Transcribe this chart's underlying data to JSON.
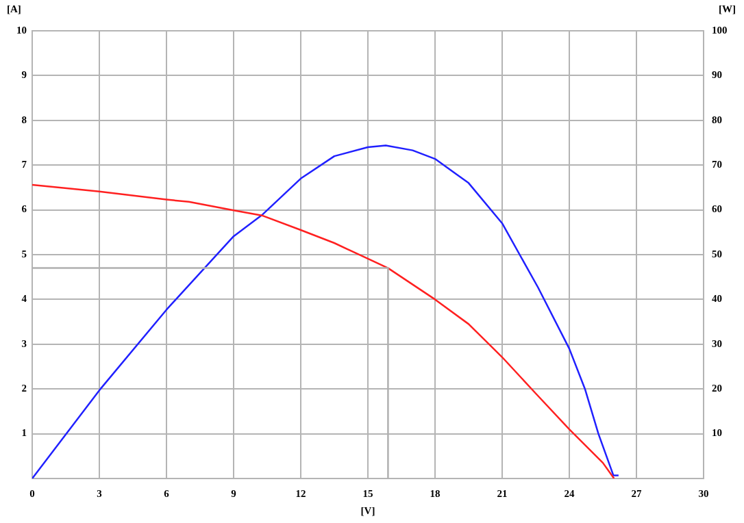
{
  "chart_data": {
    "type": "line",
    "xlabel": "[V]",
    "ylabel": "[A]",
    "y2label": "[W]",
    "xlim": [
      0,
      30
    ],
    "xticks": [
      0,
      3,
      6,
      9,
      12,
      15,
      18,
      21,
      24,
      27,
      30
    ],
    "ylim": [
      0,
      10
    ],
    "yticks": [
      1,
      2,
      3,
      4,
      5,
      6,
      7,
      8,
      9,
      10
    ],
    "y2lim": [
      0,
      100
    ],
    "y2ticks": [
      10,
      20,
      30,
      40,
      50,
      60,
      70,
      80,
      90,
      100
    ],
    "grid": true,
    "legend": false,
    "marker": "none",
    "line_style": "solid",
    "series": [
      {
        "color": "#b0b0b0",
        "x": [
          0,
          15.9,
          15.9
        ],
        "values": [
          4.7,
          4.7,
          0
        ]
      },
      {
        "color": "#ff2020",
        "x": [
          0,
          3,
          6,
          7,
          9,
          10.3,
          12,
          13.5,
          15,
          15.9,
          18,
          19.5,
          21,
          22.5,
          24,
          25.5,
          26
        ],
        "values": [
          6.56,
          6.41,
          6.23,
          6.18,
          5.99,
          5.87,
          5.55,
          5.26,
          4.91,
          4.7,
          4.0,
          3.45,
          2.71,
          1.9,
          1.1,
          0.35,
          0
        ]
      },
      {
        "color": "#2020ff",
        "axis": "y2",
        "x": [
          0,
          3,
          6,
          9,
          10.3,
          12,
          13.5,
          15,
          15.8,
          17,
          18,
          19.5,
          21,
          22.6,
          24,
          24.7,
          25.3,
          25.97,
          26.2
        ],
        "values": [
          0,
          19.7,
          37.7,
          54.1,
          59,
          67,
          72,
          74,
          74.4,
          73.3,
          71.4,
          66,
          57,
          42.7,
          29,
          20,
          10,
          0.7,
          0.7
        ]
      }
    ]
  }
}
